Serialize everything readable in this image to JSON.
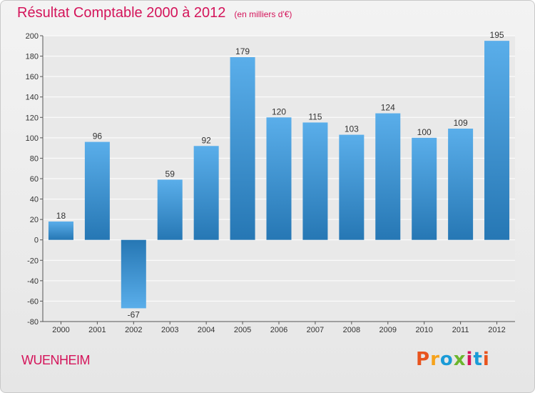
{
  "header": {
    "title": "Résultat Comptable 2000 à 2012",
    "unit": "(en milliers d'€)"
  },
  "footer": {
    "commune": "WUENHEIM",
    "logo": "Proxiti",
    "logo_colors": [
      "#e8541e",
      "#f6a21b",
      "#1a9bd7",
      "#6cb52d",
      "#d4145a",
      "#1a9bd7",
      "#e8541e"
    ]
  },
  "colors": {
    "title": "#d4145a",
    "bar_light": "#5aaeea",
    "bar_dark": "#2677b4",
    "grid": "#ffffff",
    "axis_text": "#333333"
  },
  "chart_data": {
    "type": "bar",
    "title": "Résultat Comptable 2000 à 2012",
    "xlabel": "",
    "ylabel": "",
    "categories": [
      "2000",
      "2001",
      "2002",
      "2003",
      "2004",
      "2005",
      "2006",
      "2007",
      "2008",
      "2009",
      "2010",
      "2011",
      "2012"
    ],
    "values": [
      18,
      96,
      -67,
      59,
      92,
      179,
      120,
      115,
      103,
      124,
      100,
      109,
      195
    ],
    "ylim": [
      -80,
      200
    ],
    "yticks": [
      -80,
      -60,
      -40,
      -20,
      0,
      20,
      40,
      60,
      80,
      100,
      120,
      140,
      160,
      180,
      200
    ],
    "grid": true
  }
}
